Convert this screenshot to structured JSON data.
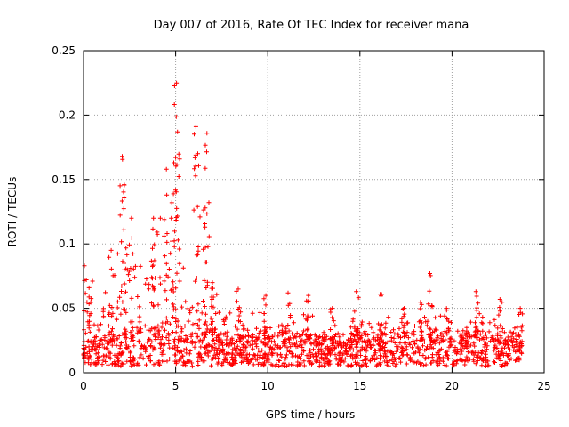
{
  "chart_data": {
    "type": "scatter",
    "title": "Day 007 of 2016, Rate Of TEC Index for receiver mana",
    "xlabel": "GPS time / hours",
    "ylabel": "ROTI / TECUs",
    "xlim": [
      0,
      25
    ],
    "ylim": [
      0,
      0.25
    ],
    "x_ticks": [
      0,
      5,
      10,
      15,
      20,
      25
    ],
    "x_tick_labels": [
      "0",
      "5",
      "10",
      "15",
      "20",
      "25"
    ],
    "y_ticks": [
      0,
      0.05,
      0.1,
      0.15,
      0.2,
      0.25
    ],
    "y_tick_labels": [
      "0",
      "0.05",
      "0.1",
      "0.15",
      "0.2",
      "0.25"
    ],
    "grid": true,
    "marker": "+",
    "color": "#ff0000",
    "data_span_hours": [
      0,
      23.8
    ],
    "baseline_roti": [
      0.005,
      0.035
    ],
    "series": [
      {
        "name": "ROTI",
        "peaks": [
          {
            "x": 0.05,
            "y": 0.083
          },
          {
            "x": 0.3,
            "y": 0.066
          },
          {
            "x": 1.5,
            "y": 0.095
          },
          {
            "x": 2.1,
            "y": 0.168
          },
          {
            "x": 2.2,
            "y": 0.146
          },
          {
            "x": 2.6,
            "y": 0.12
          },
          {
            "x": 3.8,
            "y": 0.12
          },
          {
            "x": 4.5,
            "y": 0.158
          },
          {
            "x": 4.9,
            "y": 0.163
          },
          {
            "x": 5.05,
            "y": 0.225
          },
          {
            "x": 5.1,
            "y": 0.187
          },
          {
            "x": 6.1,
            "y": 0.191
          },
          {
            "x": 6.2,
            "y": 0.17
          },
          {
            "x": 6.6,
            "y": 0.128
          },
          {
            "x": 6.7,
            "y": 0.186
          },
          {
            "x": 7.0,
            "y": 0.07
          },
          {
            "x": 8.4,
            "y": 0.065
          },
          {
            "x": 9.9,
            "y": 0.06
          },
          {
            "x": 11.1,
            "y": 0.062
          },
          {
            "x": 12.2,
            "y": 0.06
          },
          {
            "x": 13.5,
            "y": 0.05
          },
          {
            "x": 14.8,
            "y": 0.063
          },
          {
            "x": 16.1,
            "y": 0.061
          },
          {
            "x": 17.4,
            "y": 0.05
          },
          {
            "x": 18.8,
            "y": 0.077
          },
          {
            "x": 19.7,
            "y": 0.05
          },
          {
            "x": 21.3,
            "y": 0.063
          },
          {
            "x": 22.6,
            "y": 0.057
          },
          {
            "x": 23.7,
            "y": 0.05
          }
        ]
      }
    ]
  }
}
